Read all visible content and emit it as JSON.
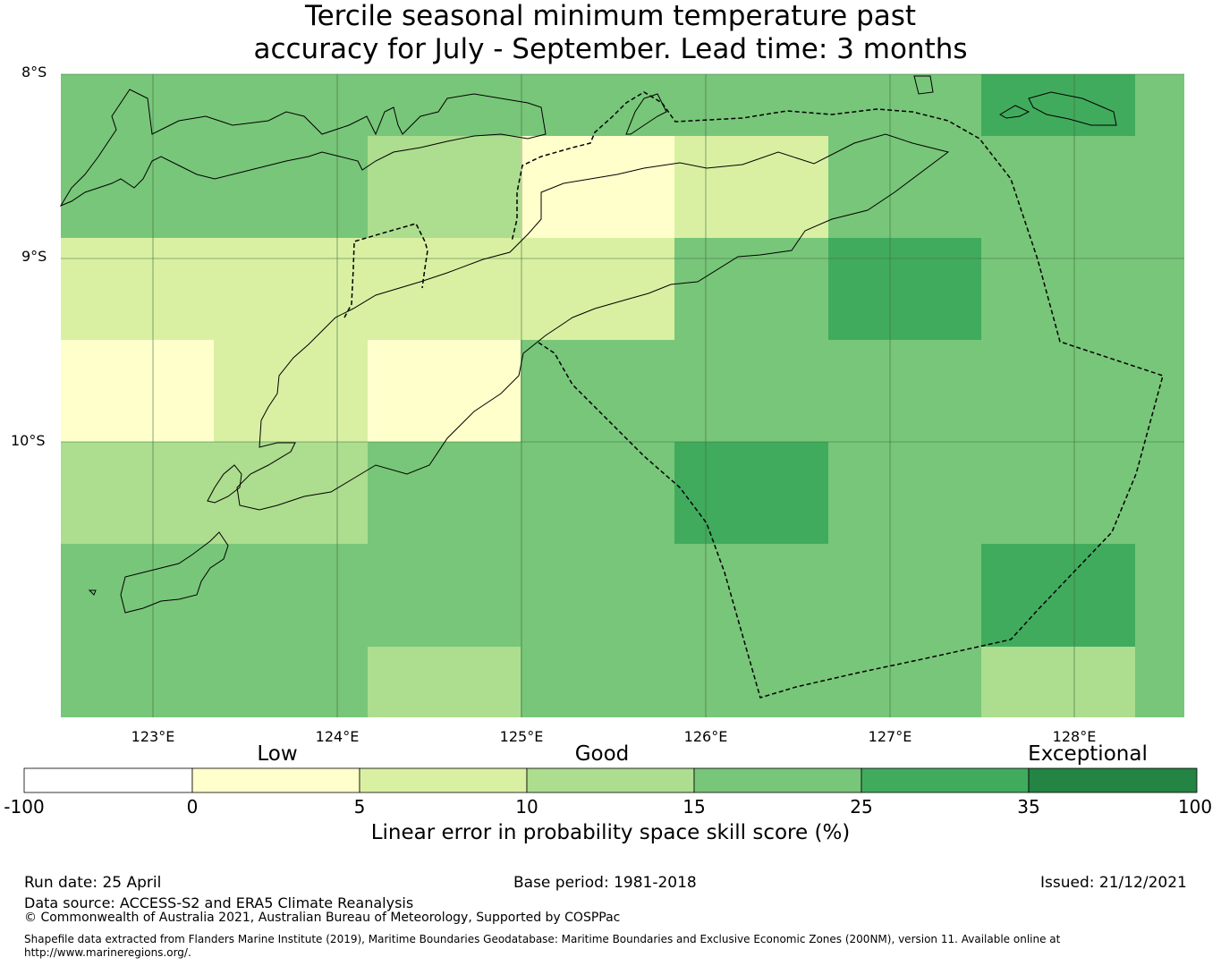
{
  "title_line1": "Tercile seasonal minimum temperature past",
  "title_line2": "accuracy for July - September. Lead time: 3 months",
  "latitude_labels": [
    "8°S",
    "9°S",
    "10°S"
  ],
  "longitude_labels": [
    "123°E",
    "124°E",
    "125°E",
    "126°E",
    "127°E",
    "128°E"
  ],
  "skill_categories": [
    "Low",
    "Good",
    "Exceptional"
  ],
  "colorbar": {
    "tick_labels": [
      "-100",
      "0",
      "5",
      "10",
      "15",
      "25",
      "35",
      "100"
    ],
    "colors": [
      "#ffffff",
      "#ffffcc",
      "#d9f0a3",
      "#addd8e",
      "#78c679",
      "#41ab5d",
      "#238443"
    ],
    "label": "Linear error in probability space skill score (%)"
  },
  "map_grid": {
    "lon_range": [
      122.5,
      128.6
    ],
    "lat_range": [
      -11.5,
      -8.0
    ],
    "cell_colors_by_row": [
      [
        "#78c679",
        "#78c679",
        "#78c679",
        "#78c679",
        "#78c679",
        "#78c679",
        "#41ab5d",
        "#78c679"
      ],
      [
        "#78c679",
        "#78c679",
        "#addd8e",
        "#ffffcc",
        "#d9f0a3",
        "#78c679",
        "#78c679",
        "#78c679"
      ],
      [
        "#d9f0a3",
        "#d9f0a3",
        "#d9f0a3",
        "#d9f0a3",
        "#78c679",
        "#41ab5d",
        "#78c679",
        "#78c679"
      ],
      [
        "#ffffcc",
        "#d9f0a3",
        "#ffffcc",
        "#78c679",
        "#78c679",
        "#78c679",
        "#78c679",
        "#78c679"
      ],
      [
        "#addd8e",
        "#addd8e",
        "#78c679",
        "#78c679",
        "#41ab5d",
        "#78c679",
        "#78c679",
        "#78c679"
      ],
      [
        "#78c679",
        "#78c679",
        "#78c679",
        "#78c679",
        "#78c679",
        "#78c679",
        "#41ab5d",
        "#78c679"
      ],
      [
        "#78c679",
        "#78c679",
        "#addd8e",
        "#78c679",
        "#78c679",
        "#78c679",
        "#addd8e",
        "#78c679"
      ]
    ]
  },
  "footer": {
    "run_date": "Run date: 25 April",
    "base_period": "Base period: 1981-2018",
    "issued": "Issued: 21/12/2021",
    "data_source": "Data source: ACCESS-S2 and ERA5 Climate Reanalysis",
    "copyright": "© Commonwealth of Australia 2021, Australian Bureau of Meteorology, Supported by COSPPac",
    "shapefile_line1": "Shapefile data extracted from Flanders Marine Institute (2019), Maritime Boundaries Geodatabase: Maritime Boundaries and Exclusive Economic Zones (200NM), version 11. Available online at",
    "shapefile_line2": "http://www.marineregions.org/."
  }
}
